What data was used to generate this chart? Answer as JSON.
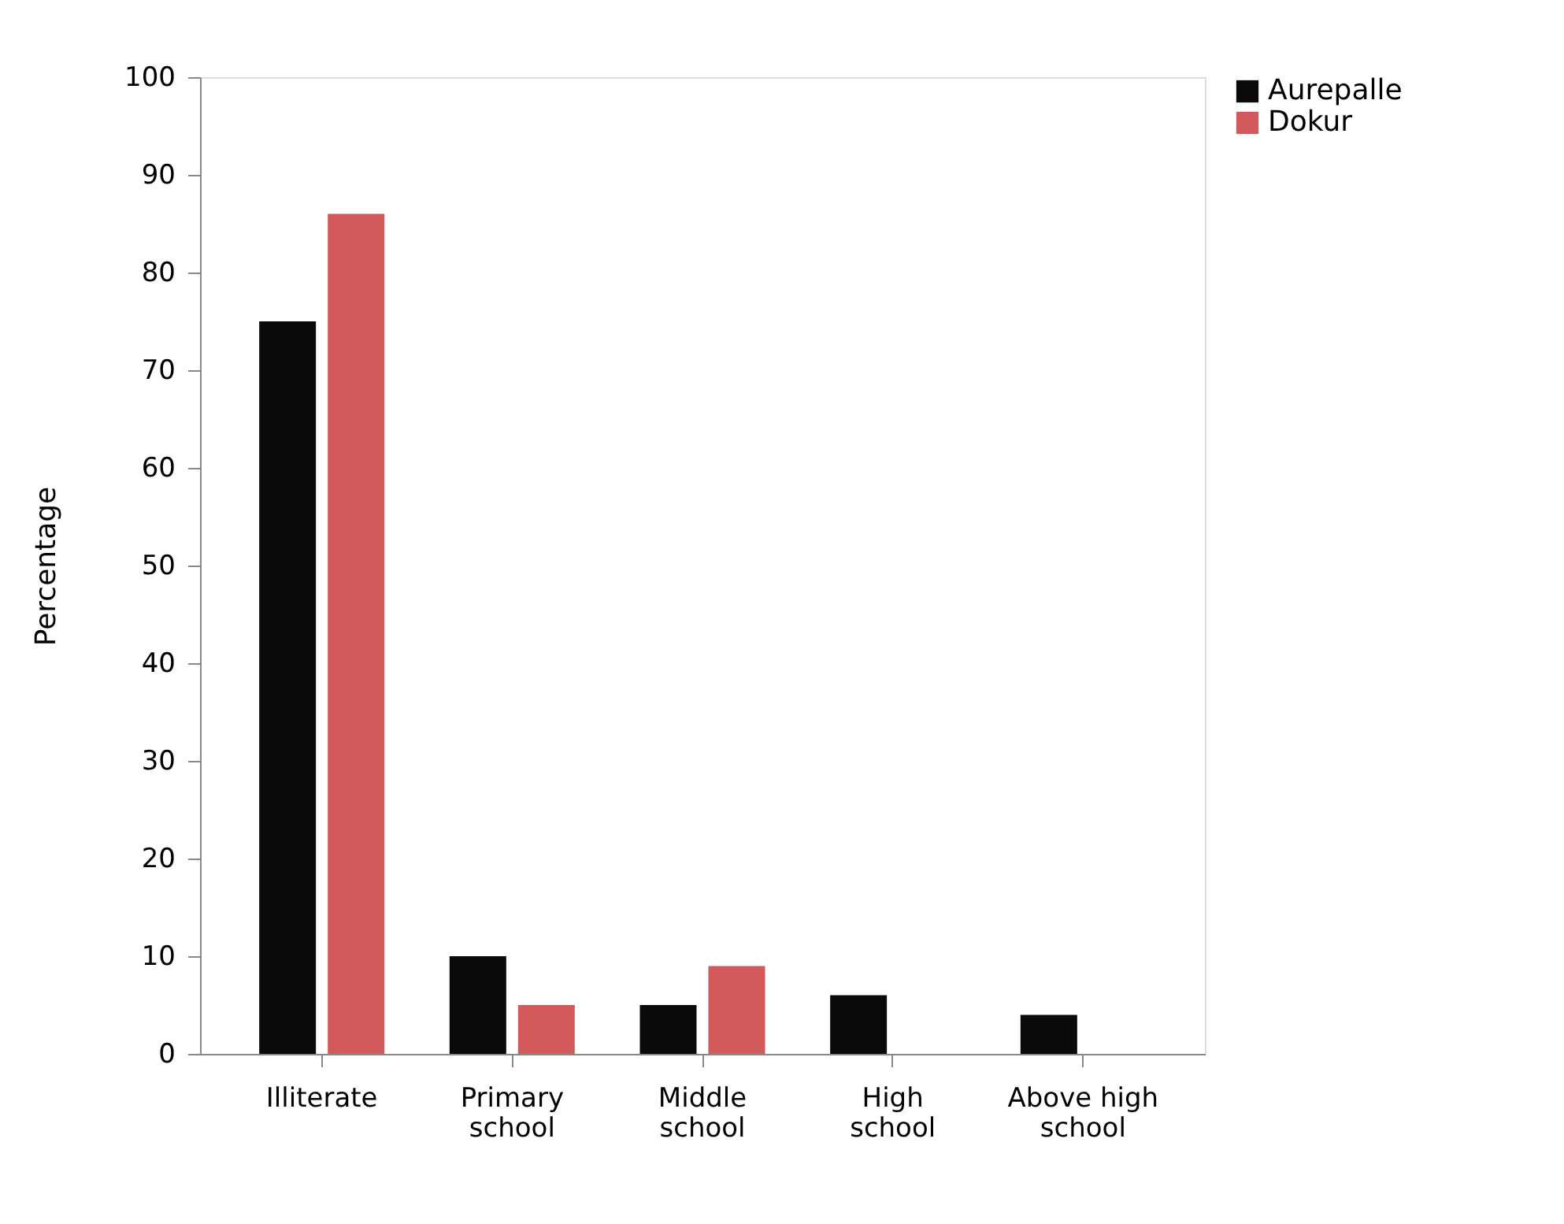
{
  "chart_data": {
    "type": "bar",
    "ylabel": "Percentage",
    "categories": [
      "Illiterate",
      "Primary school",
      "Middle school",
      "High school",
      "Above high school"
    ],
    "series": [
      {
        "name": "Aurepalle",
        "color": "#0a0a0a",
        "values": [
          75,
          10,
          5,
          6,
          4
        ]
      },
      {
        "name": "Dokur",
        "color": "#d35a5a",
        "values": [
          86,
          5,
          9,
          null,
          null
        ]
      }
    ],
    "ylim": [
      0,
      100
    ],
    "yticks": [
      0,
      10,
      20,
      30,
      40,
      50,
      60,
      70,
      80,
      90,
      100
    ],
    "grid": false,
    "legend": "right"
  }
}
